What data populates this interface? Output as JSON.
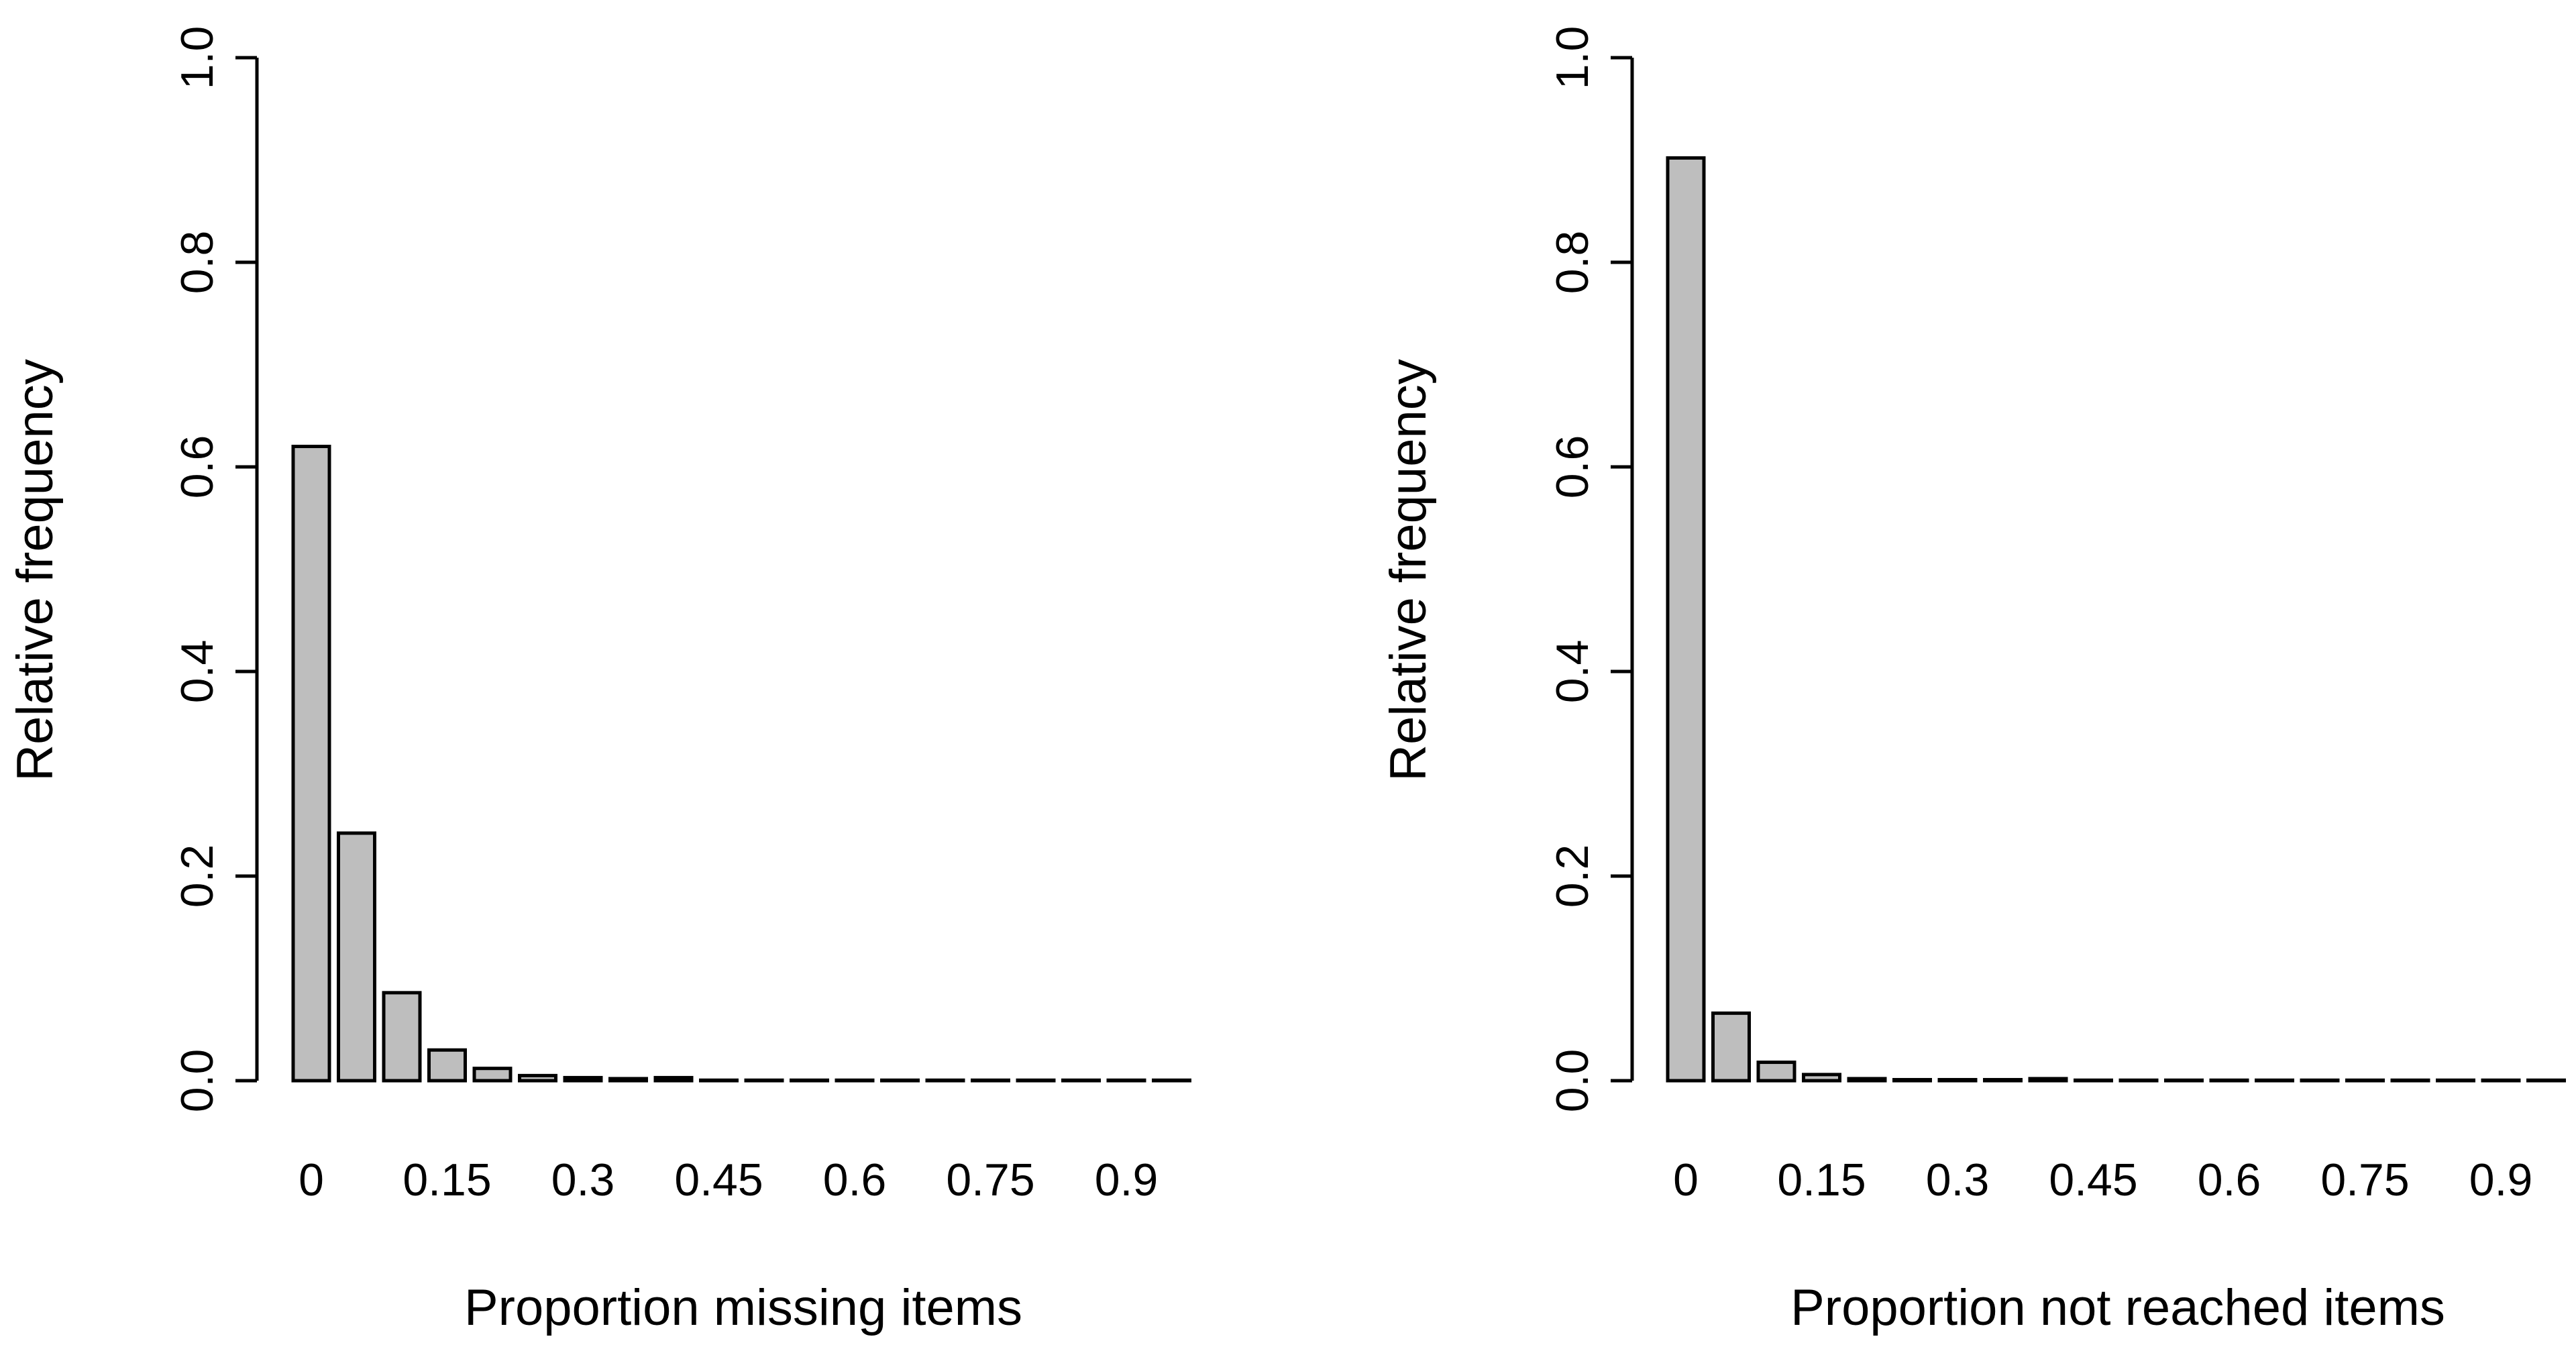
{
  "chart_data": [
    {
      "type": "bar",
      "xlabel": "Proportion missing items",
      "ylabel": "Relative frequency",
      "ylim": [
        0,
        1.0
      ],
      "yticks": [
        "0.0",
        "0.2",
        "0.4",
        "0.6",
        "0.8",
        "1.0"
      ],
      "x_tick_labels": [
        "0",
        "0.15",
        "0.3",
        "0.45",
        "0.6",
        "0.75",
        "0.9"
      ],
      "categories": [
        "0",
        "0.05",
        "0.1",
        "0.15",
        "0.2",
        "0.25",
        "0.3",
        "0.35",
        "0.4",
        "0.45",
        "0.5",
        "0.55",
        "0.6",
        "0.65",
        "0.7",
        "0.75",
        "0.8",
        "0.85",
        "0.9",
        "0.95"
      ],
      "values": [
        0.62,
        0.242,
        0.086,
        0.03,
        0.012,
        0.005,
        0.003,
        0.002,
        0.003,
        0.0005,
        0.0005,
        0.0005,
        0.0005,
        0.0005,
        0.0005,
        0.0005,
        0.0005,
        0.0005,
        0.0005,
        0.0005
      ],
      "grid": false
    },
    {
      "type": "bar",
      "xlabel": "Proportion not reached items",
      "ylabel": "Relative frequency",
      "ylim": [
        0,
        1.0
      ],
      "yticks": [
        "0.0",
        "0.2",
        "0.4",
        "0.6",
        "0.8",
        "1.0"
      ],
      "x_tick_labels": [
        "0",
        "0.15",
        "0.3",
        "0.45",
        "0.6",
        "0.75",
        "0.9"
      ],
      "categories": [
        "0",
        "0.05",
        "0.1",
        "0.15",
        "0.2",
        "0.25",
        "0.3",
        "0.35",
        "0.4",
        "0.45",
        "0.5",
        "0.55",
        "0.6",
        "0.65",
        "0.7",
        "0.75",
        "0.8",
        "0.85",
        "0.9",
        "0.95"
      ],
      "values": [
        0.902,
        0.066,
        0.018,
        0.006,
        0.002,
        0.001,
        0.001,
        0.001,
        0.002,
        0.0005,
        0.0005,
        0.0005,
        0.0005,
        0.0005,
        0.0005,
        0.0005,
        0.0005,
        0.0005,
        0.0005,
        0.0005
      ],
      "grid": false
    }
  ]
}
